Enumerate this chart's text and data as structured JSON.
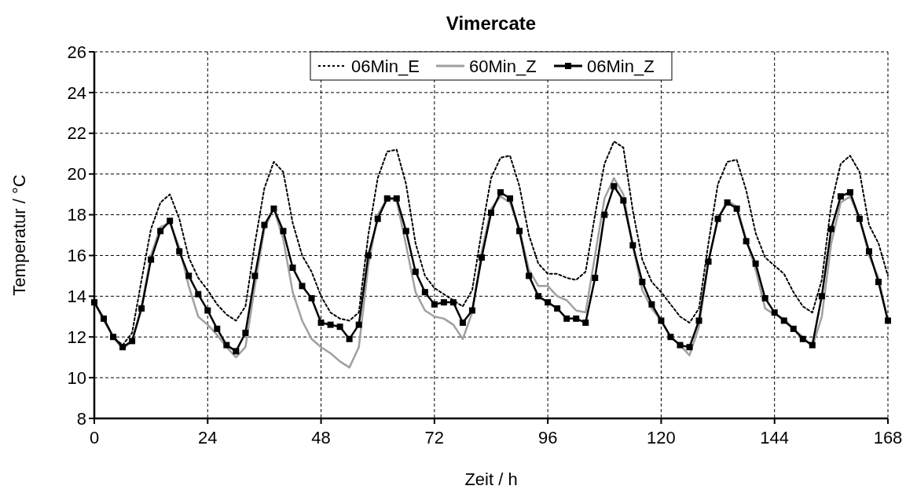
{
  "chart_data": {
    "type": "line",
    "title": "Vimercate",
    "xlabel": "Zeit / h",
    "ylabel": "Temperatur / °C",
    "x": [
      0,
      2,
      4,
      6,
      8,
      10,
      12,
      14,
      16,
      18,
      20,
      22,
      24,
      26,
      28,
      30,
      32,
      34,
      36,
      38,
      40,
      42,
      44,
      46,
      48,
      50,
      52,
      54,
      56,
      58,
      60,
      62,
      64,
      66,
      68,
      70,
      72,
      74,
      76,
      78,
      80,
      82,
      84,
      86,
      88,
      90,
      92,
      94,
      96,
      98,
      100,
      102,
      104,
      106,
      108,
      110,
      112,
      114,
      116,
      118,
      120,
      122,
      124,
      126,
      128,
      130,
      132,
      134,
      136,
      138,
      140,
      142,
      144,
      146,
      148,
      150,
      152,
      154,
      156,
      158,
      160,
      162,
      164,
      166,
      168
    ],
    "xlim": [
      0,
      168
    ],
    "xticks": [
      0,
      24,
      48,
      72,
      96,
      120,
      144,
      168
    ],
    "ylim": [
      8,
      26
    ],
    "yticks": [
      8,
      10,
      12,
      14,
      16,
      18,
      20,
      22,
      24,
      26
    ],
    "grid": true,
    "legend": "top",
    "series": [
      {
        "name": "06Min_E",
        "color": "#000000",
        "line_style": "dotted",
        "marker": "none",
        "values": [
          13.7,
          12.9,
          12.0,
          11.6,
          12.2,
          14.8,
          17.3,
          18.6,
          19.0,
          17.8,
          15.9,
          14.9,
          14.3,
          13.6,
          13.1,
          12.8,
          13.5,
          16.6,
          19.3,
          20.6,
          20.1,
          17.6,
          16.0,
          15.2,
          14.0,
          13.2,
          12.9,
          12.8,
          13.2,
          17.0,
          19.8,
          21.1,
          21.2,
          19.5,
          16.6,
          15.0,
          14.4,
          14.1,
          13.8,
          13.5,
          14.3,
          17.2,
          19.8,
          20.8,
          20.9,
          19.4,
          17.0,
          15.6,
          15.1,
          15.1,
          14.9,
          14.8,
          15.2,
          18.0,
          20.5,
          21.6,
          21.3,
          18.2,
          15.8,
          14.7,
          14.2,
          13.6,
          13.0,
          12.7,
          13.4,
          16.6,
          19.5,
          20.6,
          20.7,
          19.2,
          17.1,
          15.9,
          15.5,
          15.1,
          14.2,
          13.5,
          13.2,
          14.8,
          18.5,
          20.5,
          20.9,
          20.1,
          17.5,
          16.6,
          15.0
        ]
      },
      {
        "name": "60Min_Z",
        "color": "#a0a0a0",
        "line_style": "solid",
        "marker": "none",
        "values": [
          13.7,
          12.8,
          12.0,
          11.4,
          11.8,
          13.5,
          16.0,
          17.4,
          17.6,
          16.4,
          14.5,
          13.0,
          12.6,
          12.1,
          11.5,
          11.0,
          11.5,
          14.5,
          17.3,
          18.3,
          16.8,
          14.2,
          12.8,
          11.9,
          11.5,
          11.2,
          10.8,
          10.5,
          11.5,
          15.5,
          18.0,
          18.8,
          18.7,
          16.5,
          14.2,
          13.3,
          13.0,
          12.9,
          12.6,
          11.9,
          13.2,
          16.2,
          18.3,
          18.9,
          18.6,
          17.3,
          15.3,
          14.5,
          14.5,
          14.0,
          13.8,
          13.3,
          13.2,
          16.0,
          18.8,
          19.8,
          19.0,
          16.5,
          14.3,
          13.4,
          12.8,
          12.0,
          11.6,
          11.1,
          12.5,
          15.7,
          17.8,
          18.7,
          18.4,
          16.8,
          15.3,
          13.4,
          13.1,
          12.9,
          12.4,
          12.0,
          11.5,
          13.0,
          16.6,
          18.6,
          18.9,
          17.8,
          16.0,
          14.9,
          12.8
        ]
      },
      {
        "name": "06Min_Z",
        "color": "#000000",
        "line_style": "solid",
        "marker": "square",
        "values": [
          13.7,
          12.9,
          12.0,
          11.5,
          11.8,
          13.4,
          15.8,
          17.2,
          17.7,
          16.2,
          15.0,
          14.1,
          13.3,
          12.4,
          11.6,
          11.3,
          12.2,
          15.0,
          17.5,
          18.3,
          17.2,
          15.4,
          14.5,
          13.9,
          12.7,
          12.6,
          12.5,
          11.9,
          12.6,
          16.0,
          17.8,
          18.8,
          18.8,
          17.2,
          15.2,
          14.2,
          13.6,
          13.7,
          13.7,
          12.7,
          13.3,
          15.9,
          18.1,
          19.1,
          18.8,
          17.2,
          15.0,
          14.0,
          13.7,
          13.4,
          12.9,
          12.9,
          12.7,
          14.9,
          18.0,
          19.4,
          18.7,
          16.5,
          14.7,
          13.6,
          12.8,
          12.0,
          11.6,
          11.5,
          12.8,
          15.7,
          17.8,
          18.6,
          18.3,
          16.7,
          15.6,
          13.9,
          13.2,
          12.8,
          12.4,
          11.9,
          11.6,
          14.0,
          17.3,
          18.9,
          19.1,
          17.8,
          16.2,
          14.7,
          12.8
        ]
      }
    ]
  }
}
